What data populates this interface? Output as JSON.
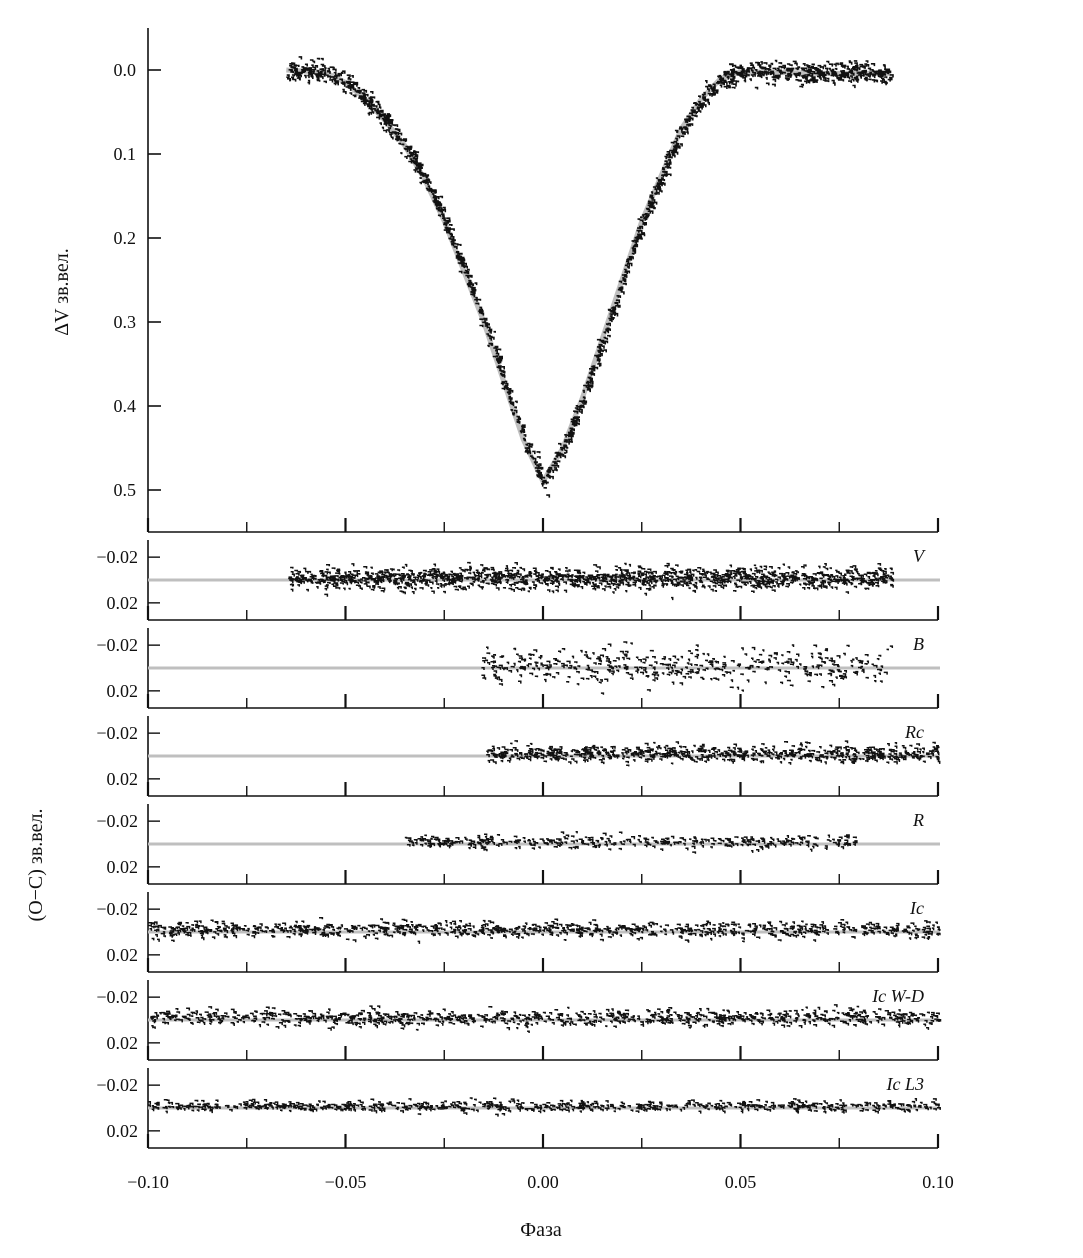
{
  "chart_data": [
    {
      "type": "scatter",
      "panel": "main",
      "ylabel": "ΔV зв.вел.",
      "xlim": [
        -0.1,
        0.1
      ],
      "ylim": [
        0.55,
        -0.05
      ],
      "y_inverted": true,
      "yticks": [
        0.0,
        0.1,
        0.2,
        0.3,
        0.4,
        0.5
      ],
      "ytick_labels": [
        "0.0",
        "0.1",
        "0.2",
        "0.3",
        "0.4",
        "0.5"
      ],
      "xticks": [
        -0.1,
        -0.075,
        -0.05,
        -0.025,
        0.0,
        0.025,
        0.05,
        0.075,
        0.1
      ],
      "model_curve": {
        "color": "#bfbfbf",
        "x": [
          -0.065,
          -0.055,
          -0.05,
          -0.045,
          -0.04,
          -0.035,
          -0.03,
          -0.025,
          -0.02,
          -0.015,
          -0.01,
          -0.005,
          0.0,
          0.005,
          0.01,
          0.015,
          0.02,
          0.025,
          0.03,
          0.035,
          0.04,
          0.045,
          0.05,
          0.06,
          0.07,
          0.08,
          0.088
        ],
        "y": [
          0.0,
          0.003,
          0.015,
          0.035,
          0.06,
          0.09,
          0.13,
          0.18,
          0.24,
          0.3,
          0.37,
          0.44,
          0.49,
          0.45,
          0.39,
          0.32,
          0.25,
          0.18,
          0.125,
          0.07,
          0.035,
          0.01,
          0.002,
          0.003,
          0.004,
          0.004,
          0.004
        ]
      },
      "observations": {
        "color": "#111111",
        "x_range": [
          -0.065,
          0.088
        ],
        "scatter": 0.006,
        "count": 1600
      }
    },
    {
      "type": "scatter",
      "panel": "residual",
      "label": "V",
      "x_range": [
        -0.065,
        0.088
      ],
      "scatter": 0.008,
      "count": 1400,
      "yticks": [
        -0.02,
        0.02
      ],
      "ytick_labels": [
        "−0.02",
        "0.02"
      ]
    },
    {
      "type": "scatter",
      "panel": "residual",
      "label": "B",
      "x_range": [
        -0.016,
        0.088
      ],
      "scatter": 0.013,
      "count": 420,
      "yticks": [
        -0.02,
        0.02
      ],
      "ytick_labels": [
        "−0.02",
        "0.02"
      ]
    },
    {
      "type": "scatter",
      "panel": "residual",
      "label": "Rc",
      "x_range": [
        -0.015,
        0.1
      ],
      "scatter": 0.006,
      "count": 700,
      "yticks": [
        -0.02,
        0.02
      ],
      "ytick_labels": [
        "−0.02",
        "0.02"
      ]
    },
    {
      "type": "scatter",
      "panel": "residual",
      "label": "R",
      "x_range": [
        -0.035,
        0.08
      ],
      "scatter": 0.005,
      "count": 380,
      "yticks": [
        -0.02,
        0.02
      ],
      "ytick_labels": [
        "−0.02",
        "0.02"
      ]
    },
    {
      "type": "scatter",
      "panel": "residual",
      "label": "Ic",
      "x_range": [
        -0.1,
        0.1
      ],
      "scatter": 0.006,
      "count": 900,
      "yticks": [
        -0.02,
        0.02
      ],
      "ytick_labels": [
        "−0.02",
        "0.02"
      ]
    },
    {
      "type": "scatter",
      "panel": "residual",
      "label": "Ic W-D",
      "x_range": [
        -0.1,
        0.1
      ],
      "scatter": 0.006,
      "count": 900,
      "yticks": [
        -0.02,
        0.02
      ],
      "ytick_labels": [
        "−0.02",
        "0.02"
      ]
    },
    {
      "type": "scatter",
      "panel": "residual",
      "label": "Ic L3",
      "x_range": [
        -0.1,
        0.1
      ],
      "scatter": 0.004,
      "count": 700,
      "yticks": [
        -0.02,
        0.02
      ],
      "ytick_labels": [
        "−0.02",
        "0.02"
      ]
    }
  ],
  "residual_axis_title": "(O−C) зв.вел.",
  "residual_ylim": [
    -0.035,
    0.035
  ],
  "xaxis": {
    "title": "Фаза",
    "xlim": [
      -0.1,
      0.1
    ],
    "tick_values": [
      -0.1,
      -0.05,
      0.0,
      0.05,
      0.1
    ],
    "tick_labels": [
      "−0.10",
      "−0.05",
      "0.00",
      "0.05",
      "0.10"
    ],
    "minor_ticks": [
      -0.075,
      -0.025,
      0.025,
      0.075
    ]
  },
  "colors": {
    "data": "#111111",
    "model": "#bfbfbf",
    "axis": "#111111"
  }
}
